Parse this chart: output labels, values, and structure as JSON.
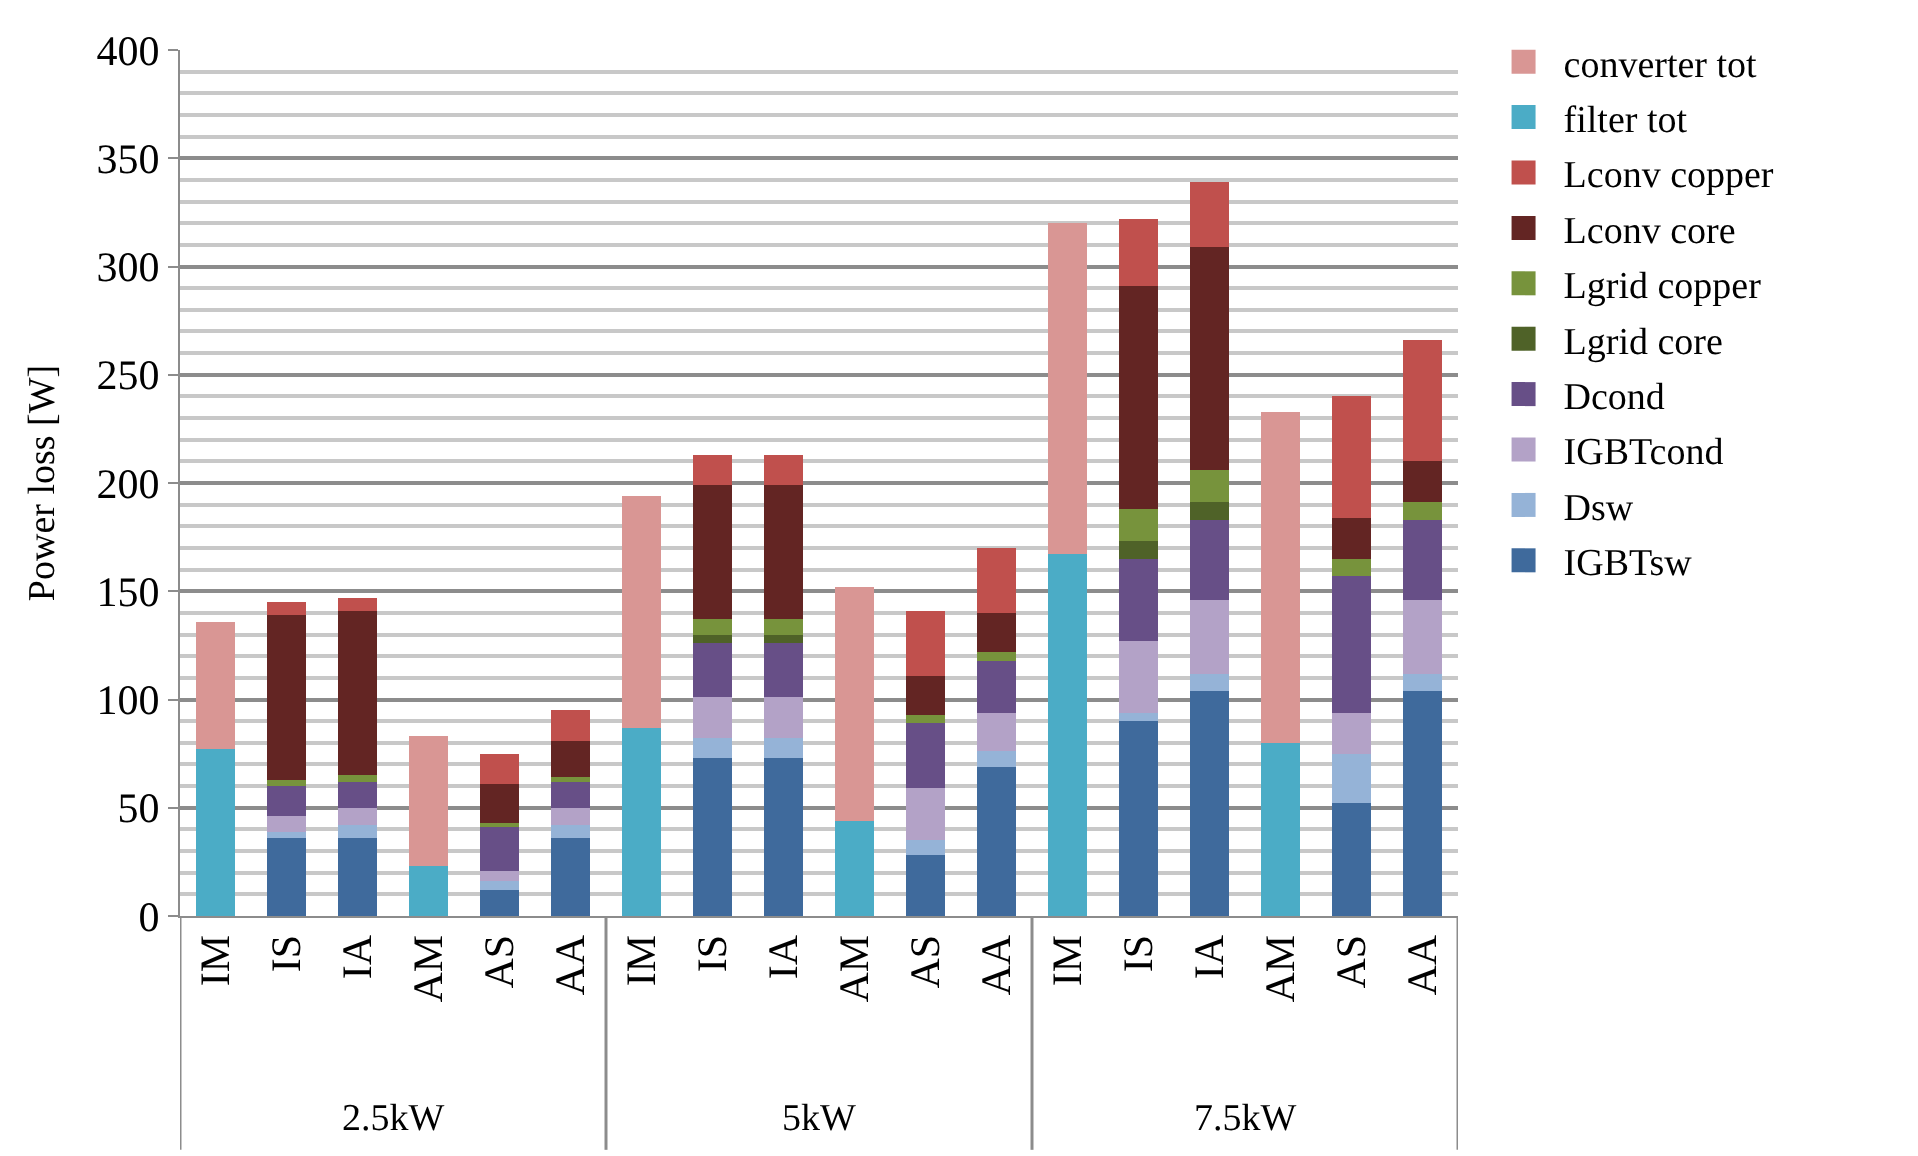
{
  "chart_data": {
    "type": "bar",
    "stacked": true,
    "ylabel": "Power loss [W]",
    "categories": [
      "IM",
      "IS",
      "IA",
      "AM",
      "AS",
      "AA",
      "IM",
      "IS",
      "IA",
      "AM",
      "AS",
      "AA",
      "IM",
      "IS",
      "IA",
      "AM",
      "AS",
      "AA"
    ],
    "annotations": [
      "2.5kW",
      "5kW",
      "7.5kW"
    ],
    "ylim": [
      0,
      400
    ],
    "yticks": [
      0,
      50,
      100,
      150,
      200,
      250,
      300,
      350,
      400
    ],
    "grid": "y",
    "legend": "right",
    "series": [
      {
        "name": "IGBTsw",
        "color": "#3f6a9c",
        "values": [
          null,
          36,
          36,
          null,
          12,
          36,
          null,
          73,
          73,
          null,
          28,
          69,
          null,
          90,
          104,
          null,
          52,
          104
        ]
      },
      {
        "name": "Dsw",
        "color": "#95b3d7",
        "values": [
          null,
          3,
          6,
          null,
          4,
          6,
          null,
          9,
          9,
          null,
          7,
          7,
          null,
          4,
          8,
          null,
          23,
          8
        ]
      },
      {
        "name": "IGBTcond",
        "color": "#b3a2c7",
        "values": [
          null,
          7,
          8,
          null,
          5,
          8,
          null,
          19,
          19,
          null,
          24,
          18,
          null,
          33,
          34,
          null,
          19,
          34
        ]
      },
      {
        "name": "Dcond",
        "color": "#674f87",
        "values": [
          null,
          14,
          12,
          null,
          20,
          12,
          null,
          25,
          25,
          null,
          30,
          24,
          null,
          38,
          37,
          null,
          63,
          37
        ]
      },
      {
        "name": "Lgrid core",
        "color": "#4f6228",
        "values": [
          null,
          0,
          0,
          null,
          0,
          0,
          null,
          4,
          4,
          null,
          0,
          0,
          null,
          8,
          8,
          null,
          0,
          0
        ]
      },
      {
        "name": "Lgrid copper",
        "color": "#77933c",
        "values": [
          null,
          3,
          3,
          null,
          2,
          2,
          null,
          7,
          7,
          null,
          4,
          4,
          null,
          15,
          15,
          null,
          8,
          8
        ]
      },
      {
        "name": "Lconv core",
        "color": "#632523",
        "values": [
          null,
          76,
          76,
          null,
          18,
          17,
          null,
          62,
          62,
          null,
          18,
          18,
          null,
          103,
          103,
          null,
          19,
          19
        ]
      },
      {
        "name": "Lconv copper",
        "color": "#c0504d",
        "values": [
          null,
          6,
          6,
          null,
          14,
          14,
          null,
          14,
          14,
          null,
          30,
          30,
          null,
          31,
          30,
          null,
          56,
          56
        ]
      },
      {
        "name": "filter tot",
        "color": "#4bacc6",
        "values": [
          77,
          null,
          null,
          23,
          null,
          null,
          87,
          null,
          null,
          44,
          null,
          null,
          167,
          null,
          null,
          80,
          null,
          null
        ]
      },
      {
        "name": "converter tot",
        "color": "#d99694",
        "values": [
          59,
          null,
          null,
          60,
          null,
          null,
          107,
          null,
          null,
          108,
          null,
          null,
          153,
          null,
          null,
          153,
          null,
          null
        ]
      }
    ]
  }
}
